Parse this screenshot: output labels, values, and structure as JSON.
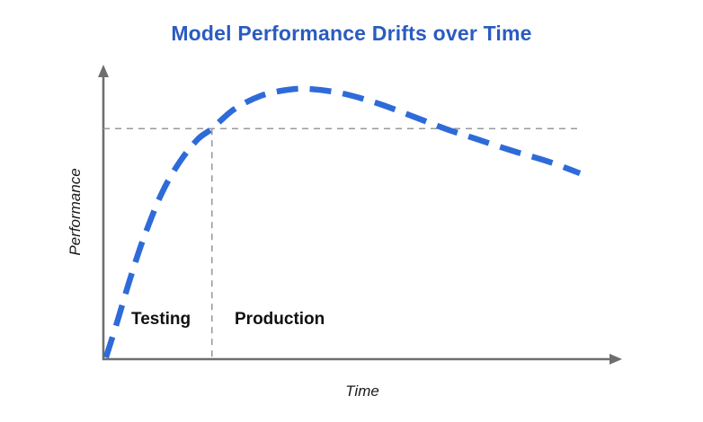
{
  "title": "Model Performance Drifts over Time",
  "axis_labels": {
    "x": "Time",
    "y": "Performance"
  },
  "phase_labels": {
    "left": "Testing",
    "right": "Production"
  },
  "colors": {
    "title": "#2A5CBF",
    "curve": "#2E6BD9",
    "axis": "#6E6E6E",
    "dashed": "#9A9A9A",
    "text": "#111111"
  },
  "chart_data": {
    "type": "line",
    "title": "Model Performance Drifts over Time",
    "xlabel": "Time",
    "ylabel": "Performance",
    "x_range": [
      0,
      100
    ],
    "y_range": [
      0,
      100
    ],
    "grid": false,
    "legend": false,
    "series": [
      {
        "name": "model-performance",
        "style": "dashed",
        "color": "#2E6BD9",
        "x": [
          0.5,
          2.6,
          5.2,
          7.8,
          11.3,
          14.8,
          18.3,
          21,
          25.2,
          30.4,
          35.7,
          40,
          46.1,
          53,
          60,
          66.1,
          72.2,
          79.1,
          86.1,
          92.2
        ],
        "y": [
          0.6,
          12.3,
          27.7,
          41.5,
          56.9,
          67.7,
          75.4,
          79,
          85.5,
          90.2,
          92.3,
          92.6,
          91.1,
          87.7,
          83.1,
          79,
          75.4,
          71.4,
          67.7,
          63.7
        ]
      }
    ],
    "annotations": {
      "threshold_line": {
        "type": "horizontal-dashed",
        "y": 79,
        "x_start": 0,
        "x_end": 92
      },
      "phase_divider": {
        "type": "vertical-dashed",
        "x": 21,
        "y_top": 79,
        "y_bottom": 0
      },
      "phases": [
        {
          "label": "Testing",
          "x_range": [
            0,
            21
          ]
        },
        {
          "label": "Production",
          "x_range": [
            21,
            100
          ]
        }
      ]
    }
  }
}
